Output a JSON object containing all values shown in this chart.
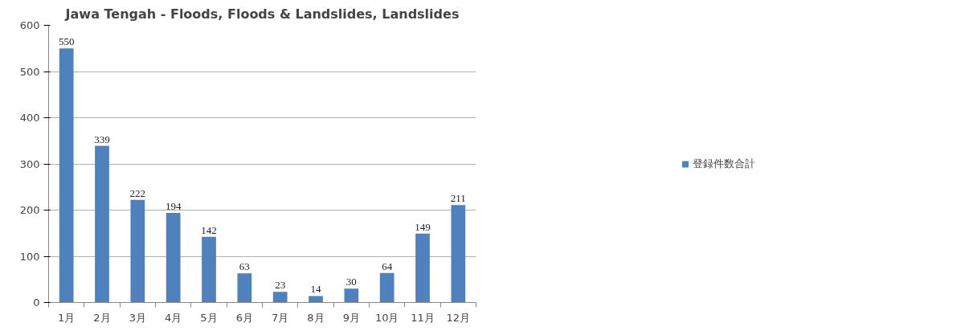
{
  "chart_data": {
    "type": "bar",
    "title": "Jawa Tengah - Floods, Floods & Landslides, Landslides",
    "categories": [
      "1月",
      "2月",
      "3月",
      "4月",
      "5月",
      "6月",
      "7月",
      "8月",
      "9月",
      "10月",
      "11月",
      "12月"
    ],
    "series": [
      {
        "name": "登録件数合計",
        "color": "#4f81bd",
        "values": [
          550,
          339,
          222,
          194,
          142,
          63,
          23,
          14,
          30,
          64,
          149,
          211
        ]
      }
    ],
    "ylim": [
      0,
      600
    ],
    "yticks": [
      0,
      100,
      200,
      300,
      400,
      500,
      600
    ],
    "grid": "y",
    "legend": "right",
    "data_labels": true
  }
}
